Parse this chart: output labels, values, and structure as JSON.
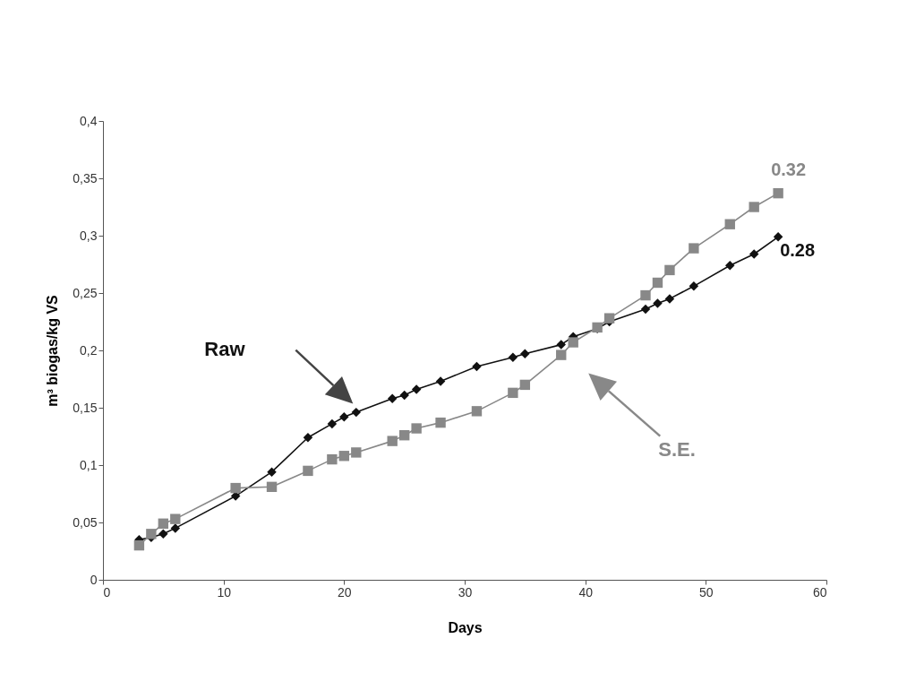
{
  "chart_data": {
    "type": "line",
    "xlabel": "Days",
    "ylabel": "m³ biogas/kg VS",
    "xlim": [
      0,
      60
    ],
    "xticks": [
      0,
      10,
      20,
      30,
      40,
      50,
      60
    ],
    "ylim": [
      0,
      0.4
    ],
    "yticks": [
      0,
      {
        "value": 0.05,
        "label": "0,05"
      },
      {
        "value": 0.1,
        "label": "0,1"
      },
      {
        "value": 0.15,
        "label": "0,15"
      },
      {
        "value": 0.2,
        "label": "0,2"
      },
      {
        "value": 0.25,
        "label": "0,25"
      },
      {
        "value": 0.3,
        "label": "0,3"
      },
      {
        "value": 0.35,
        "label": "0,35"
      },
      {
        "value": 0.4,
        "label": "0,4"
      }
    ],
    "grid": false,
    "legend": false,
    "series": [
      {
        "name": "Raw",
        "color": "#111111",
        "marker": "diamond",
        "x": [
          3,
          4,
          5,
          6,
          11,
          14,
          17,
          19,
          20,
          21,
          24,
          25,
          26,
          28,
          31,
          34,
          35,
          38,
          39,
          41,
          42,
          45,
          46,
          47,
          49,
          52,
          54,
          56
        ],
        "values": [
          0.035,
          0.037,
          0.04,
          0.045,
          0.073,
          0.094,
          0.124,
          0.136,
          0.142,
          0.146,
          0.158,
          0.161,
          0.166,
          0.173,
          0.186,
          0.194,
          0.197,
          0.205,
          0.212,
          0.219,
          0.225,
          0.236,
          0.241,
          0.245,
          0.256,
          0.274,
          0.284,
          0.299
        ]
      },
      {
        "name": "S.E.",
        "color": "#888888",
        "marker": "square",
        "x": [
          3,
          4,
          5,
          6,
          11,
          14,
          17,
          19,
          20,
          21,
          24,
          25,
          26,
          28,
          31,
          34,
          35,
          38,
          39,
          41,
          42,
          45,
          46,
          47,
          49,
          52,
          54,
          56
        ],
        "values": [
          0.03,
          0.04,
          0.049,
          0.053,
          0.08,
          0.081,
          0.095,
          0.105,
          0.108,
          0.111,
          0.121,
          0.126,
          0.132,
          0.137,
          0.147,
          0.163,
          0.17,
          0.196,
          0.207,
          0.22,
          0.228,
          0.248,
          0.259,
          0.27,
          0.289,
          0.31,
          0.325,
          0.337
        ]
      }
    ],
    "annotations": [
      {
        "text": "0.32",
        "x": 56,
        "y": 0.337
      },
      {
        "text": "0.28",
        "x": 56,
        "y": 0.299
      }
    ]
  }
}
